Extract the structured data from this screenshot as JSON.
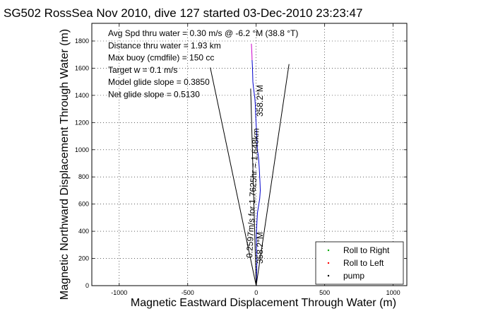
{
  "chart_data": {
    "type": "line",
    "title": "SG502 RossSea Nov 2010, dive 127 started 03-Dec-2010 23:23:47",
    "xlabel": "Magnetic Eastward Displacement Through Water (m)",
    "ylabel": "Magnetic Northward Displacement Through Water (m)",
    "xlim": [
      -1200,
      1100
    ],
    "ylim": [
      0,
      1930
    ],
    "xticks": [
      -1000,
      -500,
      0,
      500,
      1000
    ],
    "yticks": [
      0,
      200,
      400,
      600,
      800,
      1000,
      1200,
      1400,
      1600,
      1800
    ],
    "grid": true,
    "legend_position": "bottom-right",
    "legend": [
      {
        "label": "Roll to Right",
        "color": "#00aa00"
      },
      {
        "label": "Roll to Left",
        "color": "#ff0000"
      },
      {
        "label": "pump",
        "color": "#000000"
      }
    ],
    "annotations": [
      "Avg Spd thru water =  0.30 m/s @  -6.2   °M (38.8 °T)",
      "Distance thru water =  1.93 km",
      "Max buoy (cmdfile) = 150 cc",
      "Target w = 0.1 m/s",
      "Model glide slope = 0.3850",
      "Net glide slope = 0.5130"
    ],
    "rotated_labels": [
      {
        "text": "358.2°M",
        "color": "#000000"
      },
      {
        "text": "0.2597m/s for 1.7625hr = 1.648km",
        "color": "#000000"
      },
      {
        "text": "358.2°M",
        "color": "#000000"
      }
    ],
    "series": [
      {
        "color": "#0000cc",
        "x": [
          0,
          2,
          4,
          5,
          3,
          2,
          1,
          3,
          6,
          10,
          18,
          26,
          30,
          28,
          25,
          22,
          20,
          18,
          15,
          10,
          8,
          5,
          3,
          0,
          -2,
          -4,
          -6,
          -10,
          -15,
          -20,
          -24,
          -26,
          -28,
          -30
        ],
        "y": [
          0,
          60,
          120,
          180,
          240,
          300,
          360,
          420,
          480,
          540,
          590,
          640,
          700,
          760,
          820,
          870,
          900,
          930,
          960,
          990,
          1020,
          1080,
          1140,
          1180,
          1220,
          1270,
          1330,
          1380,
          1420,
          1460,
          1500,
          1560,
          1620,
          1660
        ]
      },
      {
        "color": "#cc00cc",
        "x": [
          -30,
          -31,
          -33,
          -35
        ],
        "y": [
          1660,
          1700,
          1740,
          1780
        ]
      },
      {
        "color": "#000000",
        "x": [
          0,
          -335
        ],
        "y": [
          0,
          1605
        ]
      },
      {
        "color": "#000000",
        "x": [
          0,
          240
        ],
        "y": [
          0,
          1630
        ]
      },
      {
        "color": "#000000",
        "x": [
          0,
          -40
        ],
        "y": [
          0,
          1450
        ]
      }
    ]
  }
}
